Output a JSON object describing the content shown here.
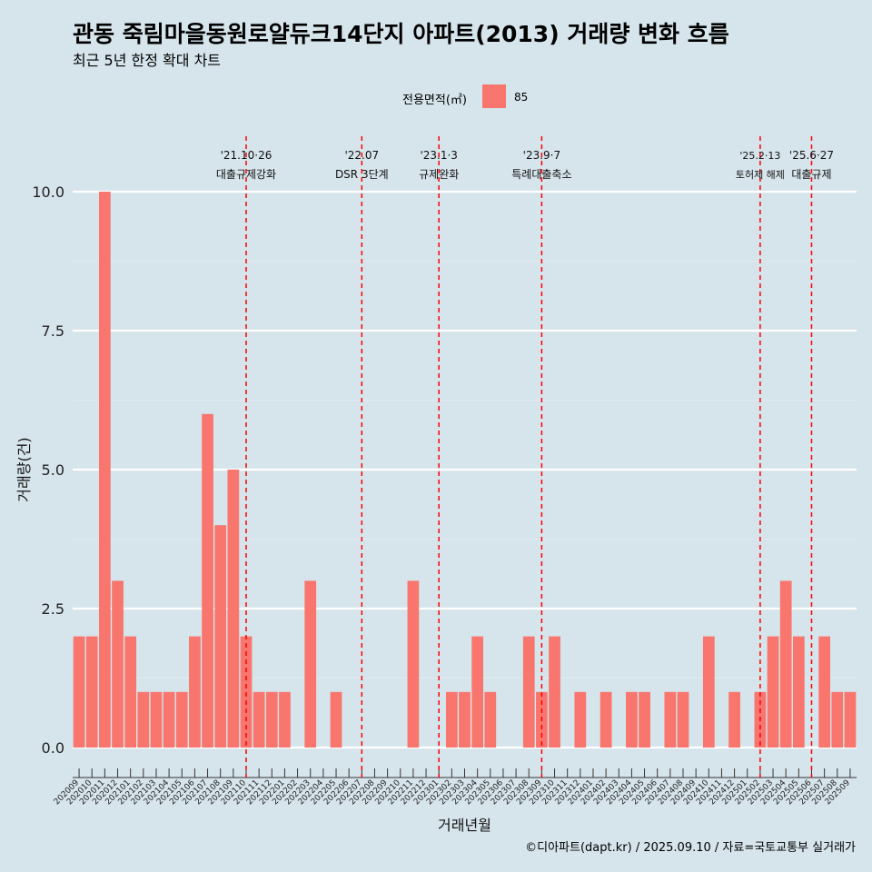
{
  "title": "관동 죽림마을동원로얄듀크14단지 아파트(2013) 거래량 변화 흐름",
  "subtitle": "최근 5년 한정 확대 차트",
  "legend": {
    "title": "전용면적(㎡)",
    "label": "85"
  },
  "caption": "©디아파트(dapt.kr) / 2025.09.10 / 자료=국토교통부 실거래가",
  "colors": {
    "background": "#d6e4eb",
    "bar": "#f8766d",
    "event_line": "#ff0000",
    "grid": "#ffffff"
  },
  "chart_data": {
    "type": "bar",
    "xlabel": "거래년월",
    "ylabel": "거래량(건)",
    "ylim": [
      0,
      10
    ],
    "yticks": [
      "0.0",
      "2.5",
      "5.0",
      "7.5",
      "10.0"
    ],
    "grid": "horizontal major, white",
    "legend_position": "top",
    "categories": [
      "202009",
      "202010",
      "202011",
      "202012",
      "202101",
      "202102",
      "202103",
      "202104",
      "202105",
      "202106",
      "202107",
      "202108",
      "202109",
      "202110",
      "202111",
      "202112",
      "202201",
      "202202",
      "202203",
      "202204",
      "202205",
      "202206",
      "202207",
      "202208",
      "202209",
      "202210",
      "202211",
      "202212",
      "202301",
      "202302",
      "202303",
      "202304",
      "202305",
      "202306",
      "202307",
      "202308",
      "202309",
      "202310",
      "202311",
      "202312",
      "202401",
      "202402",
      "202403",
      "202404",
      "202405",
      "202406",
      "202407",
      "202408",
      "202409",
      "202410",
      "202411",
      "202412",
      "202501",
      "202502",
      "202503",
      "202504",
      "202505",
      "202506",
      "202507",
      "202508",
      "202509"
    ],
    "series": [
      {
        "name": "85",
        "values": [
          2,
          2,
          10,
          3,
          2,
          1,
          1,
          1,
          1,
          2,
          6,
          4,
          5,
          2,
          1,
          1,
          1,
          0,
          3,
          0,
          1,
          0,
          0,
          0,
          0,
          0,
          3,
          0,
          0,
          1,
          1,
          2,
          1,
          0,
          0,
          2,
          1,
          2,
          0,
          1,
          0,
          1,
          0,
          1,
          1,
          0,
          1,
          1,
          0,
          2,
          0,
          1,
          0,
          1,
          2,
          3,
          2,
          0,
          2,
          1,
          1
        ]
      }
    ],
    "events": [
      {
        "date": "202110",
        "line1": "'21.10·26",
        "line2": "대출규제강화"
      },
      {
        "date": "202207",
        "line1": "'22.07",
        "line2": "DSR 3단계"
      },
      {
        "date": "202301",
        "line1": "'23.1·3",
        "line2": "규제완화"
      },
      {
        "date": "202309",
        "line1": "'23.9·7",
        "line2": "특례대출축소"
      },
      {
        "date": "202502",
        "line1": "'25.2·13",
        "line2": "토허제 해제"
      },
      {
        "date": "202506",
        "line1": "'25.6·27",
        "line2": "대출규제"
      }
    ]
  }
}
